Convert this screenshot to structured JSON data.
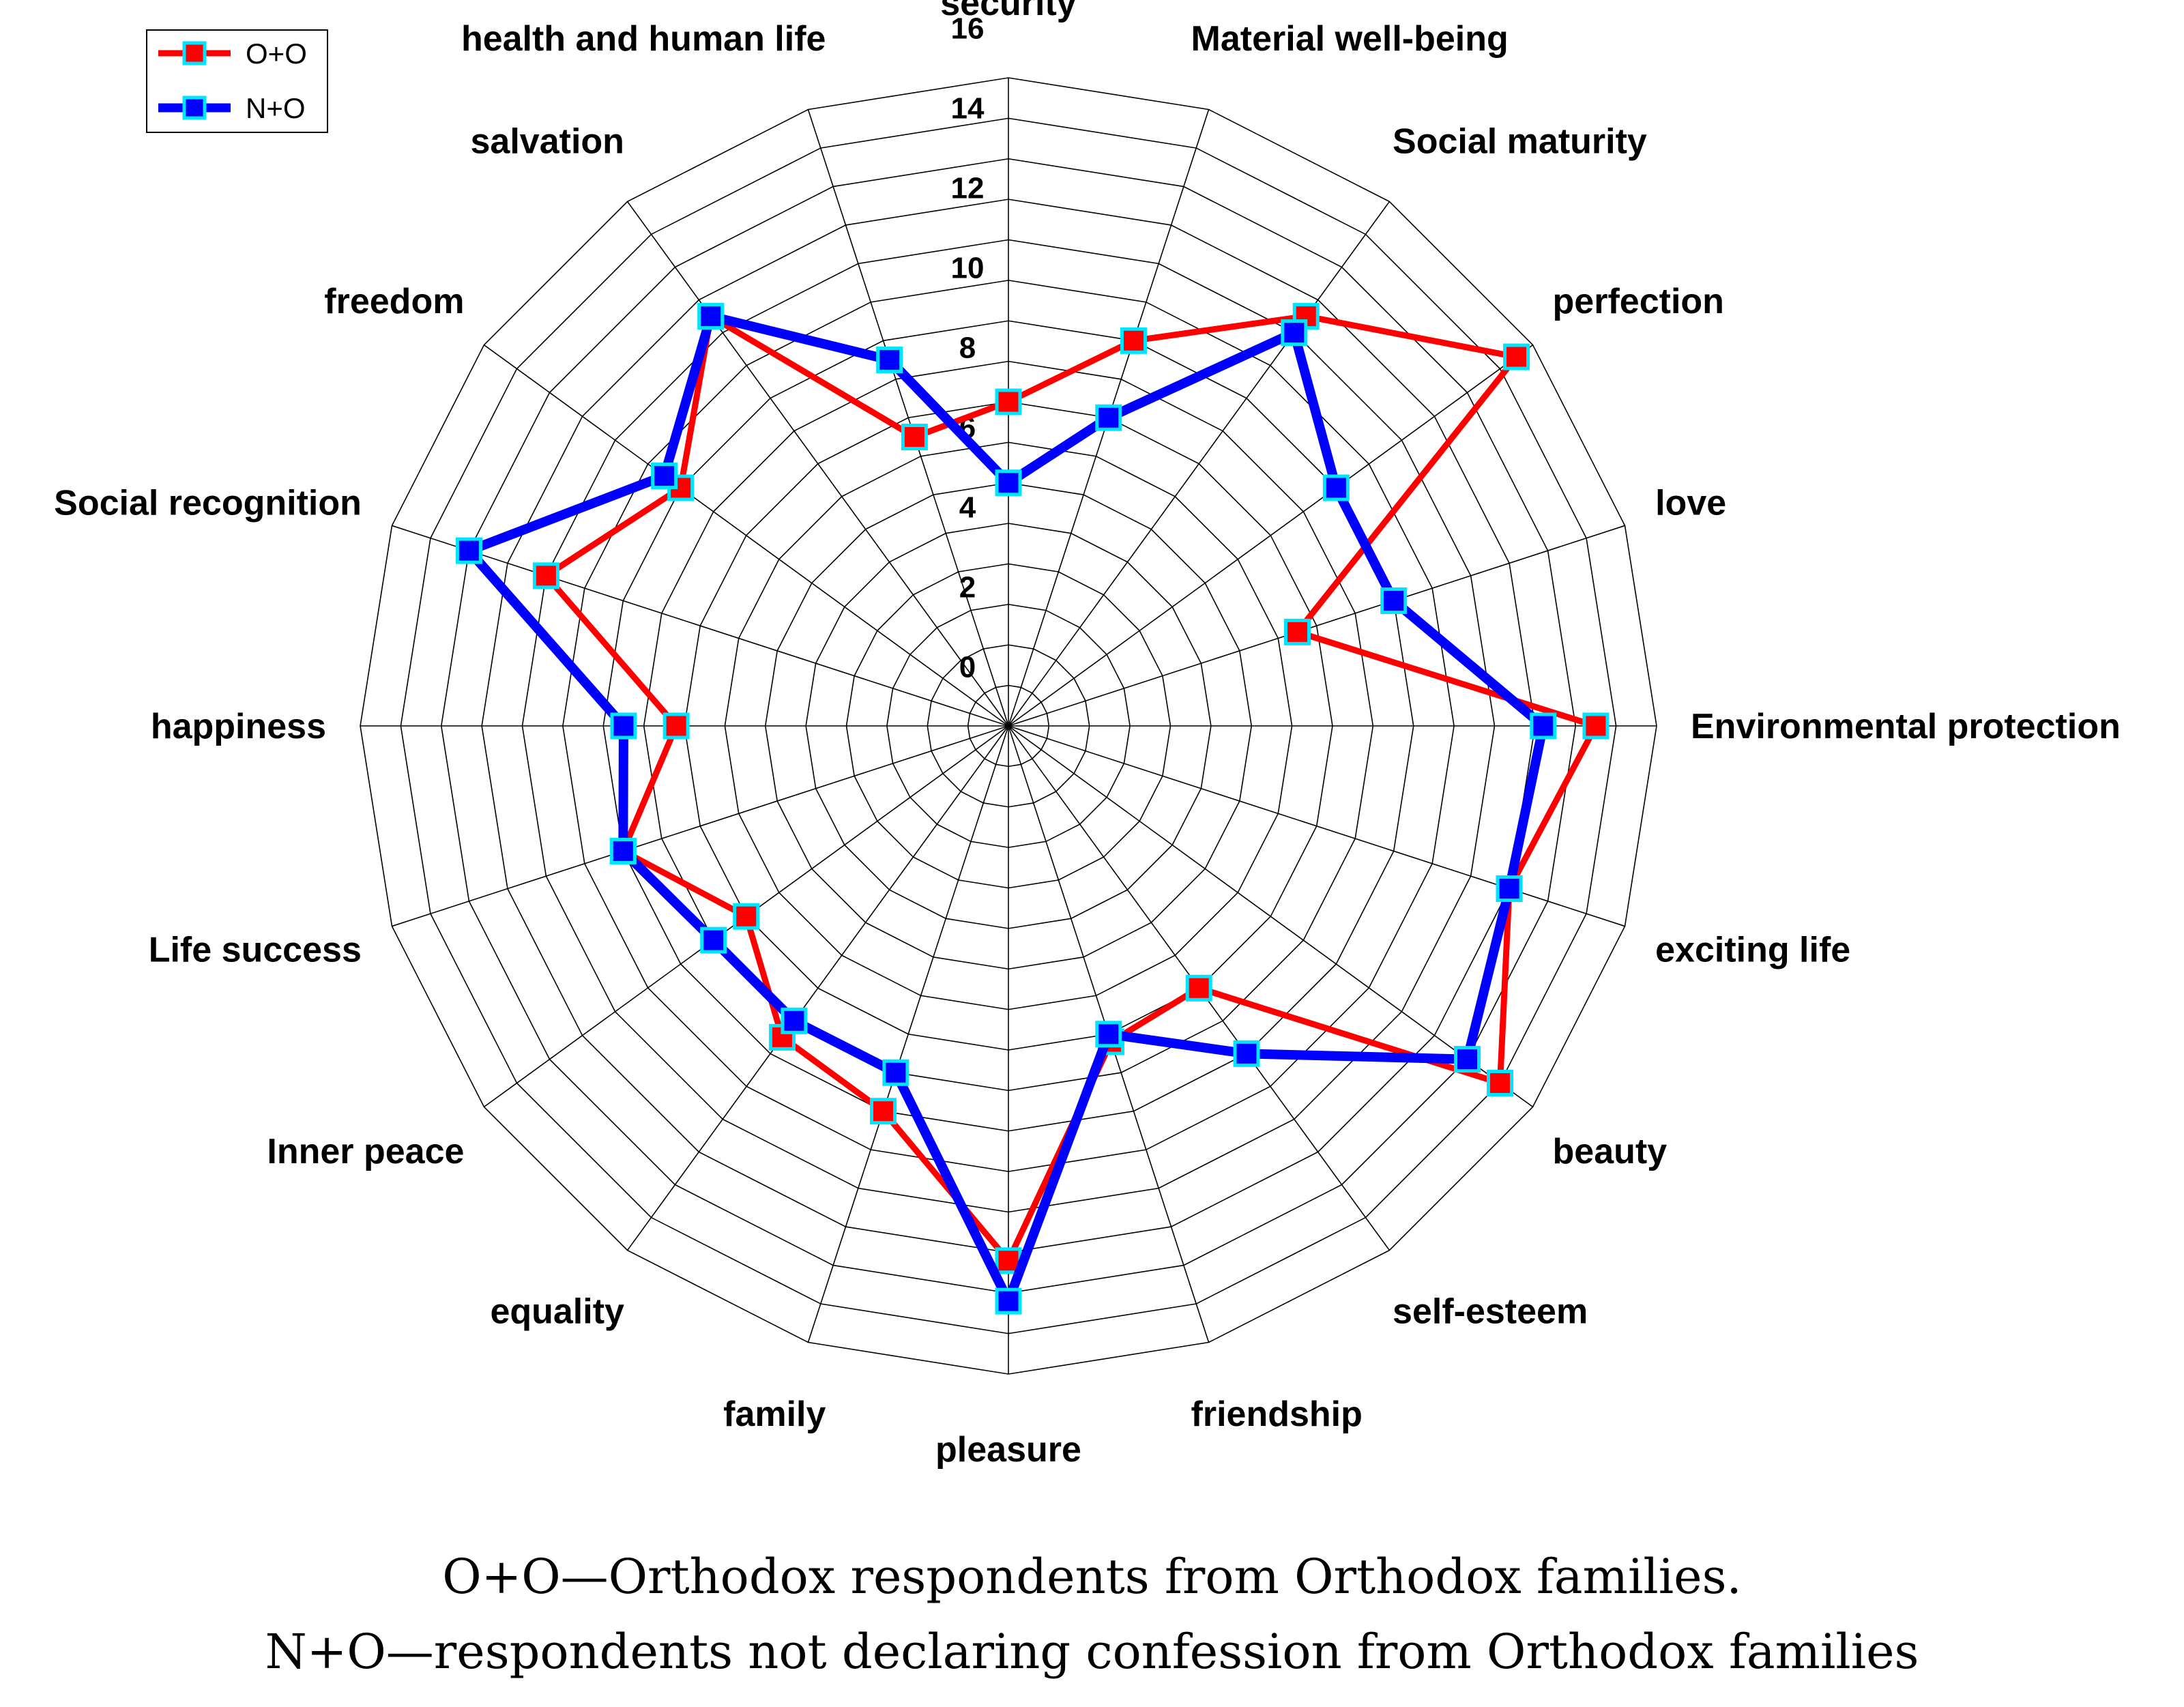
{
  "chart_data": {
    "type": "radar",
    "r_range": [
      0,
      16
    ],
    "ticks": [
      0,
      2,
      4,
      6,
      8,
      10,
      12,
      14,
      16
    ],
    "grid": true,
    "legend_position": "top-left",
    "categories": [
      "security",
      "Material well-being",
      "Social maturity",
      "perfection",
      "love",
      "Environmental protection",
      "exciting life",
      "beauty",
      "self-esteem",
      "friendship",
      "pleasure",
      "family",
      "equality",
      "Inner peace",
      "Life success",
      "happiness",
      "Social recognition",
      "freedom",
      "salvation",
      "health and human life"
    ],
    "series": [
      {
        "name": "O+O",
        "color": "#ff0000",
        "marker_fill": "#ff0000",
        "values": [
          8,
          10,
          12.5,
          15.5,
          7.5,
          14.5,
          13,
          15,
          8,
          8.2,
          13.2,
          10,
          9.5,
          8,
          10,
          8.2,
          12,
          10,
          12.5,
          7.5
        ]
      },
      {
        "name": "N+O",
        "color": "#0000ff",
        "marker_fill": "#0000ff",
        "values": [
          6,
          8,
          12,
          10,
          10,
          13.2,
          13,
          14,
          10,
          8,
          14.2,
          9,
          9,
          9,
          10,
          9.5,
          14,
          10.5,
          12.5,
          9.5
        ]
      }
    ]
  },
  "caption": {
    "line1": "O+O—Orthodox respondents from Orthodox families.",
    "line2": "N+O—respondents not declaring confession from Orthodox families"
  }
}
